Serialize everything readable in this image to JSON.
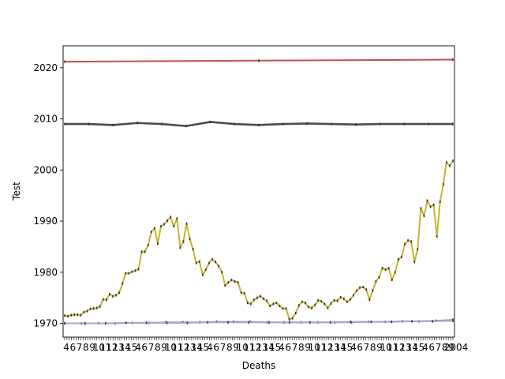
{
  "chart_data": {
    "type": "line",
    "title": "",
    "xlabel": "Deaths",
    "ylabel": "Test",
    "ylim": [
      1967.3,
      2024.3
    ],
    "yticks": [
      1970,
      1980,
      1990,
      2000,
      2010,
      2020
    ],
    "xtick_count": 170,
    "xtick_labels_visible": [
      "4",
      "6",
      "7",
      "8",
      "9",
      "10",
      "11",
      "12",
      "13",
      "14",
      "15",
      "2004"
    ],
    "grid": false,
    "legend": "none",
    "series": [
      {
        "color": "#c44e52",
        "values": [
          2021.2,
          2021.4,
          2021.6
        ]
      },
      {
        "color": "#4c4c4c",
        "values": [
          2009.0,
          2009.0,
          2008.8,
          2009.2,
          2009.0,
          2008.6,
          2009.4,
          2009.0,
          2008.8,
          2009.0,
          2009.1,
          2009.0,
          2008.9,
          2009.0,
          2009.0,
          2009.0,
          2009.0
        ]
      },
      {
        "color": "#c4b530",
        "values": [
          1971.5,
          1971.4,
          1971.6,
          1971.7,
          1971.7,
          1971.6,
          1972.2,
          1972.4,
          1972.8,
          1972.9,
          1973.0,
          1973.3,
          1974.7,
          1974.6,
          1975.7,
          1975.3,
          1975.5,
          1976.0,
          1977.8,
          1979.8,
          1979.8,
          1980.1,
          1980.3,
          1980.6,
          1984.0,
          1984.0,
          1985.3,
          1987.9,
          1988.6,
          1985.6,
          1989.0,
          1989.4,
          1990.1,
          1990.8,
          1989.0,
          1990.5,
          1984.8,
          1986.0,
          1989.5,
          1986.5,
          1984.5,
          1981.8,
          1982.1,
          1979.5,
          1980.5,
          1981.8,
          1982.5,
          1982.0,
          1981.2,
          1980.0,
          1977.4,
          1978.0,
          1978.5,
          1978.2,
          1978.0,
          1976.0,
          1975.9,
          1974.0,
          1973.8,
          1974.6,
          1975.0,
          1975.3,
          1974.8,
          1974.4,
          1973.4,
          1973.8,
          1974.0,
          1973.4,
          1972.9,
          1972.9,
          1970.8,
          1971.0,
          1972.0,
          1973.5,
          1974.2,
          1974.0,
          1973.2,
          1973.0,
          1973.6,
          1974.5,
          1974.3,
          1973.8,
          1973.0,
          1973.9,
          1974.5,
          1974.4,
          1975.1,
          1974.8,
          1974.2,
          1974.7,
          1975.5,
          1976.4,
          1977.0,
          1977.1,
          1976.6,
          1974.6,
          1976.4,
          1978.2,
          1979.0,
          1980.8,
          1980.5,
          1980.8,
          1978.5,
          1980.0,
          1982.5,
          1983.0,
          1985.5,
          1986.2,
          1986.0,
          1982.0,
          1984.5,
          1992.5,
          1991.0,
          1994.0,
          1992.8,
          1993.2,
          1987.0,
          1993.8,
          1997.2,
          2001.5,
          2000.8,
          2001.8
        ]
      },
      {
        "color": "#64b5cd",
        "values": [
          1970.0,
          1970.0,
          1970.0,
          1970.0,
          1970.1,
          1970.1,
          1970.2,
          1970.2,
          1970.2,
          1970.3,
          1970.3,
          1970.3,
          1970.2,
          1970.2,
          1970.2,
          1970.2,
          1970.2,
          1970.2,
          1970.3,
          1970.3,
          1970.4,
          1970.4,
          1970.5,
          1970.7
        ]
      },
      {
        "color": "#b3a0d0",
        "values": [
          1970.0,
          1970.0,
          1970.0,
          1970.1,
          1970.1,
          1970.1,
          1970.1,
          1970.2,
          1970.2,
          1970.2,
          1970.2,
          1970.2,
          1970.2,
          1970.2,
          1970.3,
          1970.3,
          1970.3,
          1970.4,
          1970.4,
          1970.5
        ]
      }
    ]
  }
}
